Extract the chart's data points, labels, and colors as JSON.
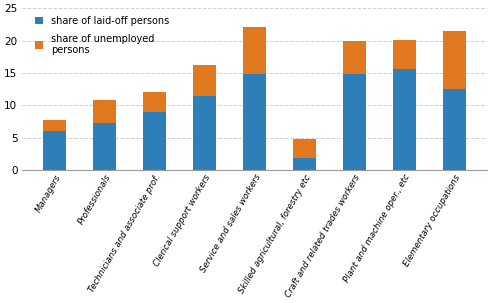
{
  "categories": [
    "Managers",
    "Professionals",
    "Technicians and associate prof.",
    "Clerical support workers",
    "Service and sales workers",
    "Skilled agricultural, forestry etc",
    "Craft and related trades workers",
    "Plant and machine oper., etc",
    "Elementary occupations"
  ],
  "laid_off": [
    6.0,
    7.2,
    9.0,
    11.5,
    14.8,
    1.8,
    14.9,
    15.6,
    12.5
  ],
  "unemployed": [
    1.8,
    3.6,
    3.0,
    4.8,
    7.3,
    3.0,
    5.0,
    4.5,
    9.0
  ],
  "color_laid_off": "#2e7eb8",
  "color_unemployed": "#e07820",
  "legend_laid_off": "share of laid-off persons",
  "legend_unemployed": "share of unemployed\npersons",
  "ylim": [
    0,
    25
  ],
  "yticks": [
    0,
    5,
    10,
    15,
    20,
    25
  ],
  "grid_color": "#d0d0d0",
  "background_color": "#ffffff"
}
